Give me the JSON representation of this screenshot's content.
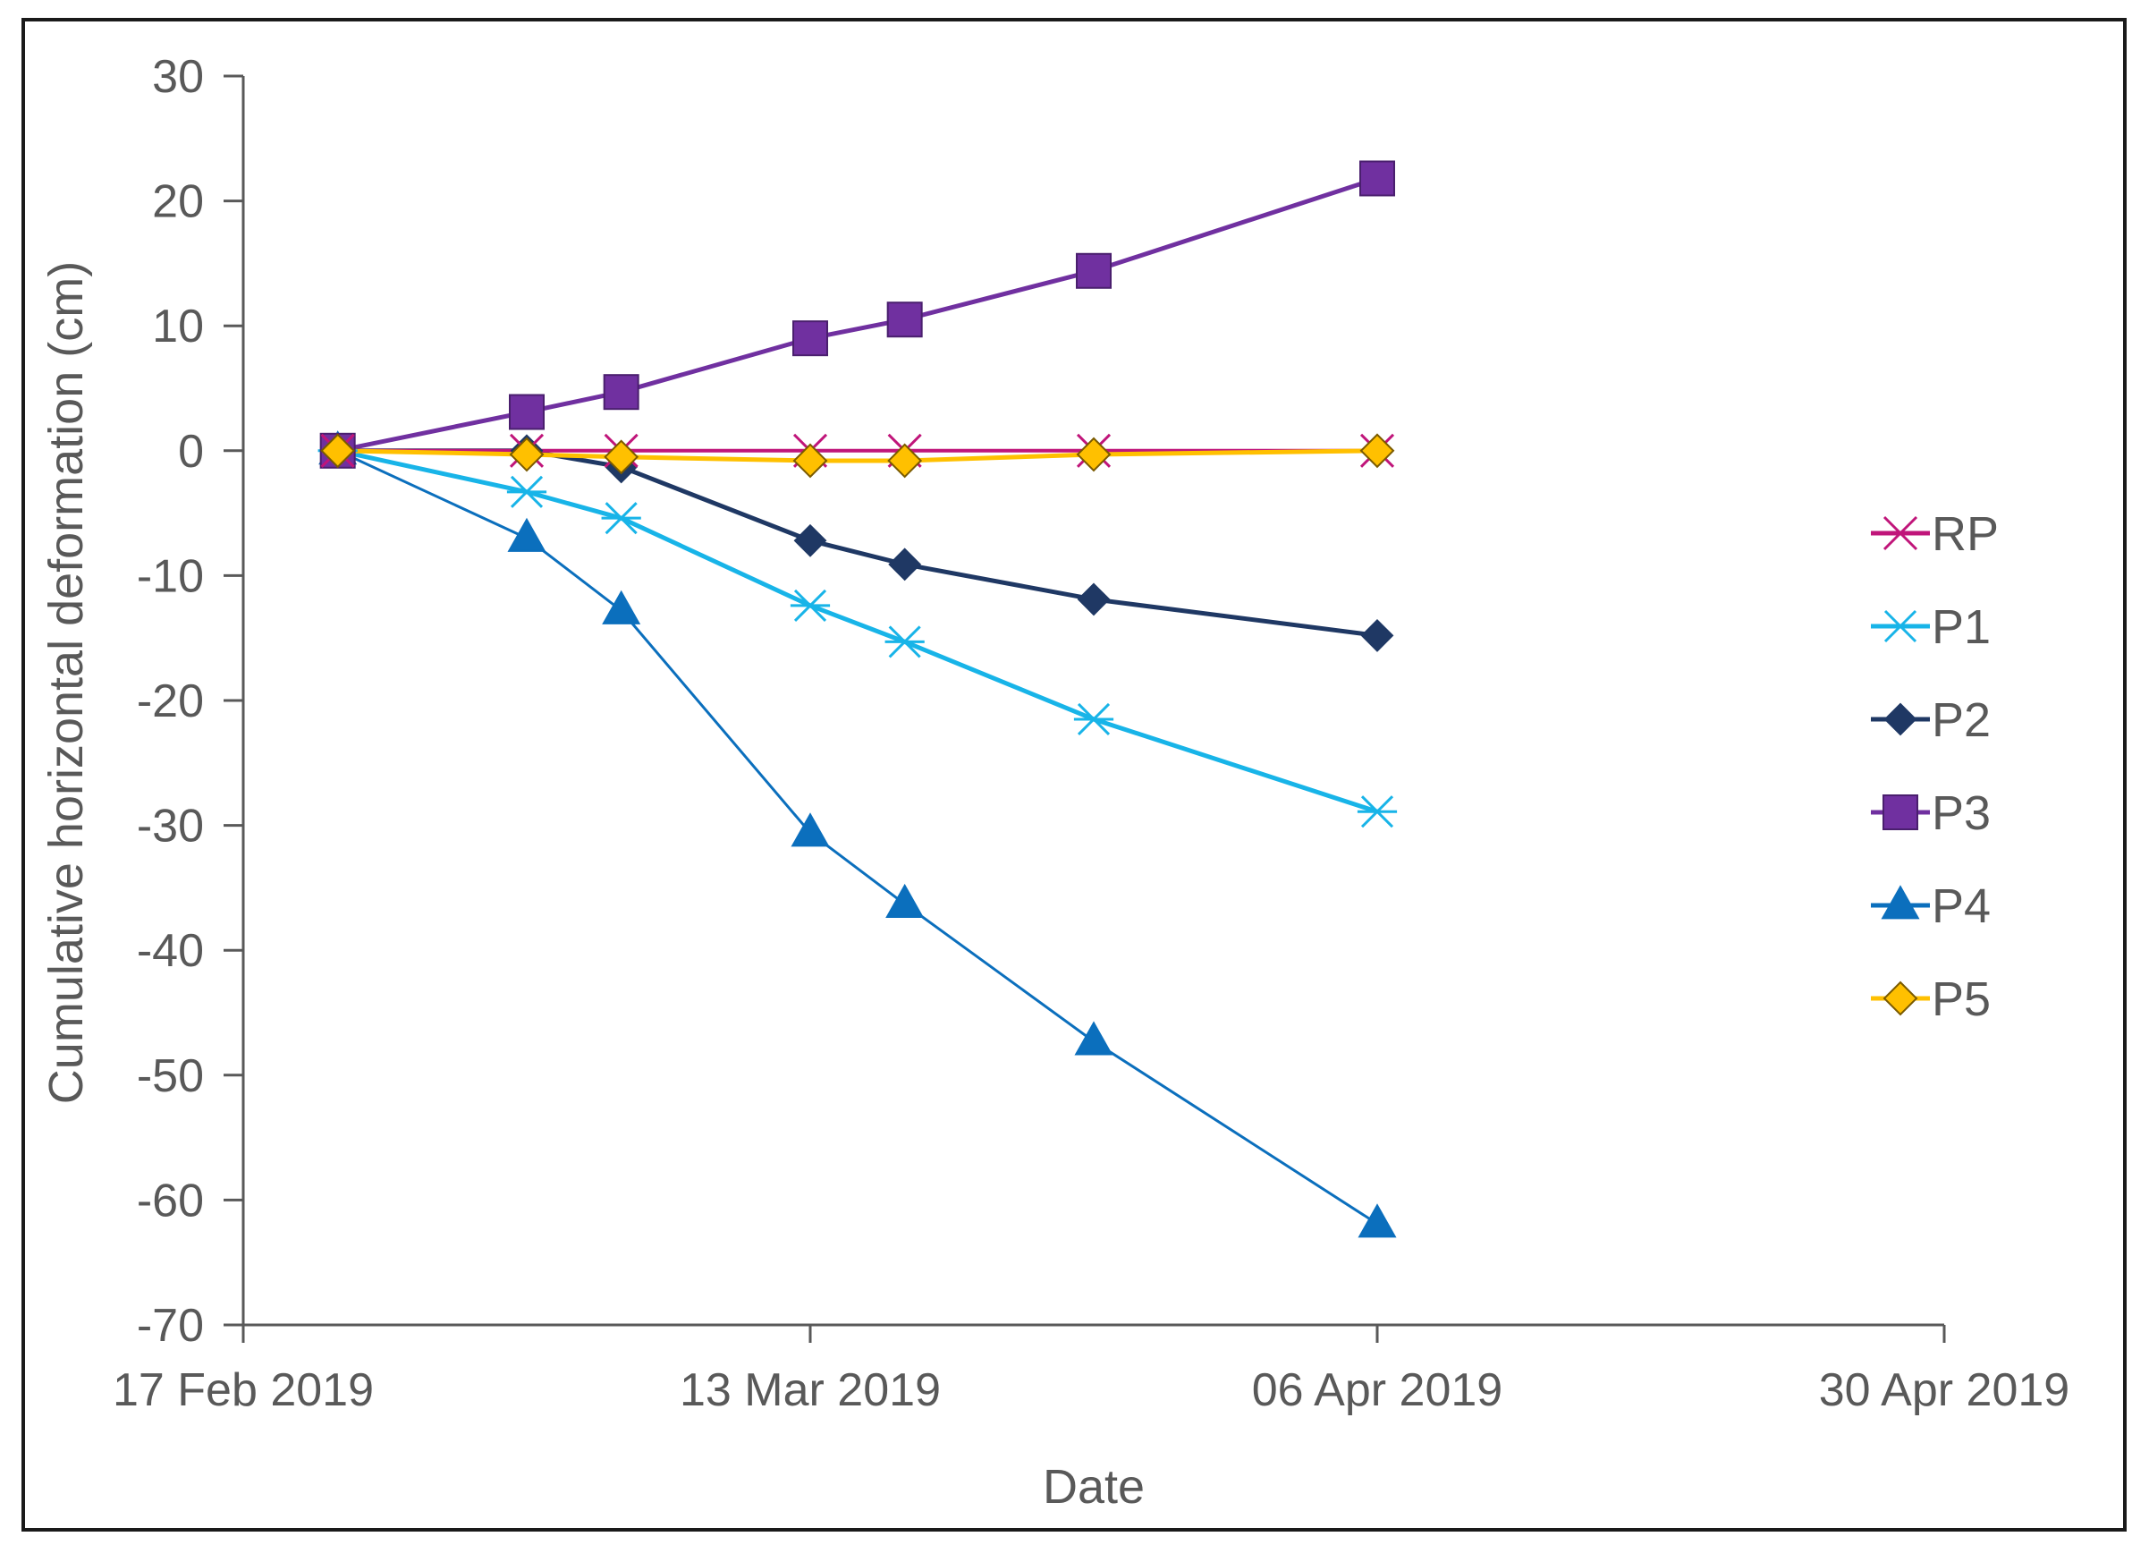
{
  "chart_data": {
    "type": "line",
    "title": "",
    "xlabel": "Date",
    "ylabel": "Cumulative horizontal deformation (cm)",
    "ylim": [
      -70,
      30
    ],
    "yticks": [
      30,
      20,
      10,
      0,
      -10,
      -20,
      -30,
      -40,
      -50,
      -60,
      -70
    ],
    "xlim_days": [
      0,
      72
    ],
    "xticks": [
      {
        "day": 0,
        "label": "17 Feb 2019"
      },
      {
        "day": 24,
        "label": "13 Mar 2019"
      },
      {
        "day": 48,
        "label": "06 Apr 2019"
      },
      {
        "day": 72,
        "label": "30 Apr 2019"
      }
    ],
    "x_days": [
      4,
      12,
      16,
      24,
      28,
      36,
      48
    ],
    "series": [
      {
        "name": "RP",
        "color": "#c0157a",
        "marker": "x",
        "values": [
          0,
          0,
          0,
          0,
          0,
          0,
          0
        ]
      },
      {
        "name": "P1",
        "color": "#18b4e8",
        "marker": "asterisk",
        "values": [
          0,
          -3.3,
          -5.4,
          -12.4,
          -15.3,
          -21.5,
          -28.9
        ]
      },
      {
        "name": "P2",
        "color": "#1f3864",
        "marker": "diamond",
        "values": [
          0,
          0,
          -1.3,
          -7.2,
          -9.1,
          -11.9,
          -14.8
        ]
      },
      {
        "name": "P3",
        "color": "#7030a0",
        "marker": "square",
        "values": [
          0,
          3.1,
          4.7,
          9.0,
          10.5,
          14.4,
          21.8
        ]
      },
      {
        "name": "P4",
        "color": "#0b6fbd",
        "marker": "triangle",
        "values": [
          0,
          -7.0,
          -12.8,
          -30.6,
          -36.3,
          -47.3,
          -61.9
        ]
      },
      {
        "name": "P5",
        "color": "#ffc000",
        "marker": "diamond-outline",
        "values": [
          0,
          -0.3,
          -0.5,
          -0.8,
          -0.8,
          -0.3,
          0
        ]
      }
    ]
  }
}
